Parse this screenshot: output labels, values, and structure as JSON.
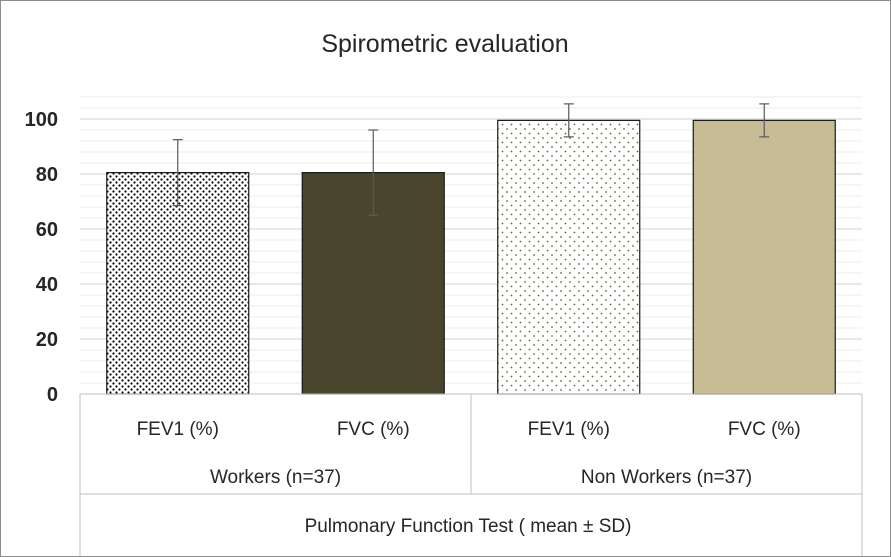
{
  "chart_data": {
    "type": "bar",
    "title": "Spirometric evaluation",
    "xlabel": "Pulmonary Function Test ( mean ± SD)",
    "ylabel": "",
    "ylim": [
      0,
      100
    ],
    "y_ticks": [
      "0",
      "20",
      "40",
      "60",
      "80",
      "100"
    ],
    "y_tick_values": [
      0,
      20,
      40,
      60,
      80,
      100
    ],
    "grid": true,
    "groups": [
      {
        "label": "Workers (n=37)",
        "categories": [
          "FEV1 (%)",
          "FVC (%)"
        ]
      },
      {
        "label": "Non Workers (n=37)",
        "categories": [
          "FEV1 (%)",
          "FVC (%)"
        ]
      }
    ],
    "bars": [
      {
        "group": "Workers (n=37)",
        "category": "FEV1 (%)",
        "value": 80.5,
        "sd": 12,
        "fill": "dots-dense",
        "color": "#000000"
      },
      {
        "group": "Workers (n=37)",
        "category": "FVC (%)",
        "value": 80.5,
        "sd": 15.5,
        "fill": "solid",
        "color": "#4a452d"
      },
      {
        "group": "Non Workers (n=37)",
        "category": "FEV1 (%)",
        "value": 99.5,
        "sd": 6,
        "fill": "dots-sparse",
        "color": "#6b6536"
      },
      {
        "group": "Non Workers (n=37)",
        "category": "FVC (%)",
        "value": 99.5,
        "sd": 6,
        "fill": "solid",
        "color": "#c6bd97"
      }
    ]
  }
}
